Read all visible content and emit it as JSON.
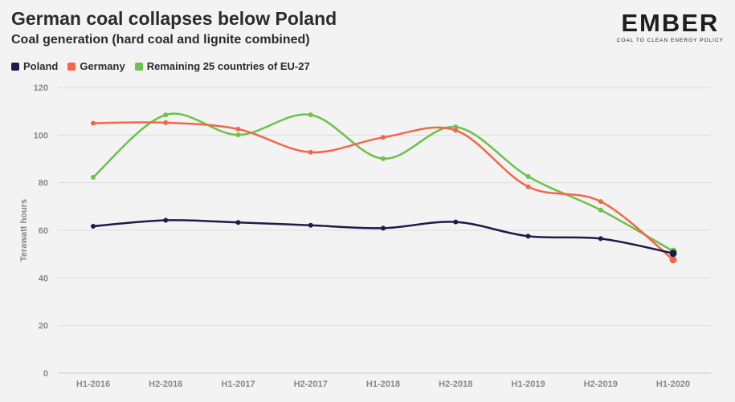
{
  "header": {
    "title": "German coal collapses below Poland",
    "subtitle": "Coal generation (hard coal and lignite combined)"
  },
  "logo": {
    "word": "EMBER",
    "tagline": "COAL TO CLEAN ENERGY POLICY"
  },
  "chart_data": {
    "type": "line",
    "title": "German coal collapses below Poland",
    "subtitle": "Coal generation (hard coal and lignite combined)",
    "xlabel": "",
    "ylabel": "Terawatt hours",
    "ylim": [
      0,
      120
    ],
    "yticks": [
      0,
      20,
      40,
      60,
      80,
      100,
      120
    ],
    "grid": true,
    "legend_position": "top-left",
    "categories": [
      "H1-2016",
      "H2-2016",
      "H1-2017",
      "H2-2017",
      "H1-2018",
      "H2-2018",
      "H1-2019",
      "H2-2019",
      "H1-2020"
    ],
    "series": [
      {
        "name": "Poland",
        "color": "#1f1a4a",
        "values": [
          61.7,
          64.2,
          63.3,
          62.1,
          60.9,
          63.5,
          57.5,
          56.5,
          50.3
        ]
      },
      {
        "name": "Germany",
        "color": "#f2674a",
        "values": [
          105,
          105.2,
          102.5,
          92.8,
          99.0,
          102.0,
          78.3,
          72.1,
          47.6
        ]
      },
      {
        "name": "Remaining 25 countries of EU-27",
        "color": "#6cc24a",
        "values": [
          82.3,
          108.5,
          100.1,
          108.5,
          90.1,
          103.4,
          82.6,
          68.5,
          51.2
        ]
      }
    ]
  }
}
